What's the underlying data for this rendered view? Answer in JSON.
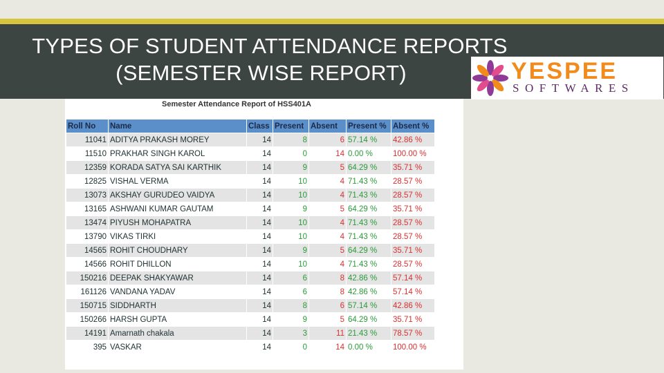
{
  "slide": {
    "title_line1": "TYPES OF STUDENT ATTENDANCE REPORTS",
    "title_line2": "(SEMESTER WISE  REPORT)"
  },
  "logo": {
    "word": "YESPEE",
    "subtitle": "SOFTWARES",
    "brand_color": "#f08b1c",
    "sub_color": "#5b2a63"
  },
  "report": {
    "title": "Semester Attendance Report of HSS401A",
    "headers": [
      "Roll No",
      "Name",
      "Class",
      "Present",
      "Absent",
      "Present %",
      "Absent %"
    ],
    "rows": [
      [
        "11041",
        "ADITYA PRAKASH MOREY",
        "14",
        "8",
        "6",
        "57.14 %",
        "42.86 %"
      ],
      [
        "11510",
        "PRAKHAR SINGH KAROL",
        "14",
        "0",
        "14",
        "0.00 %",
        "100.00 %"
      ],
      [
        "12359",
        "KORADA SATYA SAI KARTHIK",
        "14",
        "9",
        "5",
        "64.29 %",
        "35.71 %"
      ],
      [
        "12825",
        "VISHAL VERMA",
        "14",
        "10",
        "4",
        "71.43 %",
        "28.57 %"
      ],
      [
        "13073",
        "AKSHAY GURUDEO VAIDYA",
        "14",
        "10",
        "4",
        "71.43 %",
        "28.57 %"
      ],
      [
        "13165",
        "ASHWANI KUMAR GAUTAM",
        "14",
        "9",
        "5",
        "64.29 %",
        "35.71 %"
      ],
      [
        "13474",
        "PIYUSH MOHAPATRA",
        "14",
        "10",
        "4",
        "71.43 %",
        "28.57 %"
      ],
      [
        "13790",
        "VIKAS TIRKI",
        "14",
        "10",
        "4",
        "71.43 %",
        "28.57 %"
      ],
      [
        "14565",
        "ROHIT CHOUDHARY",
        "14",
        "9",
        "5",
        "64.29 %",
        "35.71 %"
      ],
      [
        "14566",
        "ROHIT DHILLON",
        "14",
        "10",
        "4",
        "71.43 %",
        "28.57 %"
      ],
      [
        "150216",
        "DEEPAK SHAKYAWAR",
        "14",
        "6",
        "8",
        "42.86 %",
        "57.14 %"
      ],
      [
        "161126",
        "VANDANA YADAV",
        "14",
        "6",
        "8",
        "42.86 %",
        "57.14 %"
      ],
      [
        "150715",
        "SIDDHARTH",
        "14",
        "8",
        "6",
        "57.14 %",
        "42.86 %"
      ],
      [
        "150266",
        "HARSH GUPTA",
        "14",
        "9",
        "5",
        "64.29 %",
        "35.71 %"
      ],
      [
        "14191",
        "Amarnath chakala",
        "14",
        "3",
        "11",
        "21.43 %",
        "78.57 %"
      ],
      [
        "395",
        "VASKAR",
        "14",
        "0",
        "14",
        "0.00 %",
        "100.00 %"
      ]
    ]
  }
}
